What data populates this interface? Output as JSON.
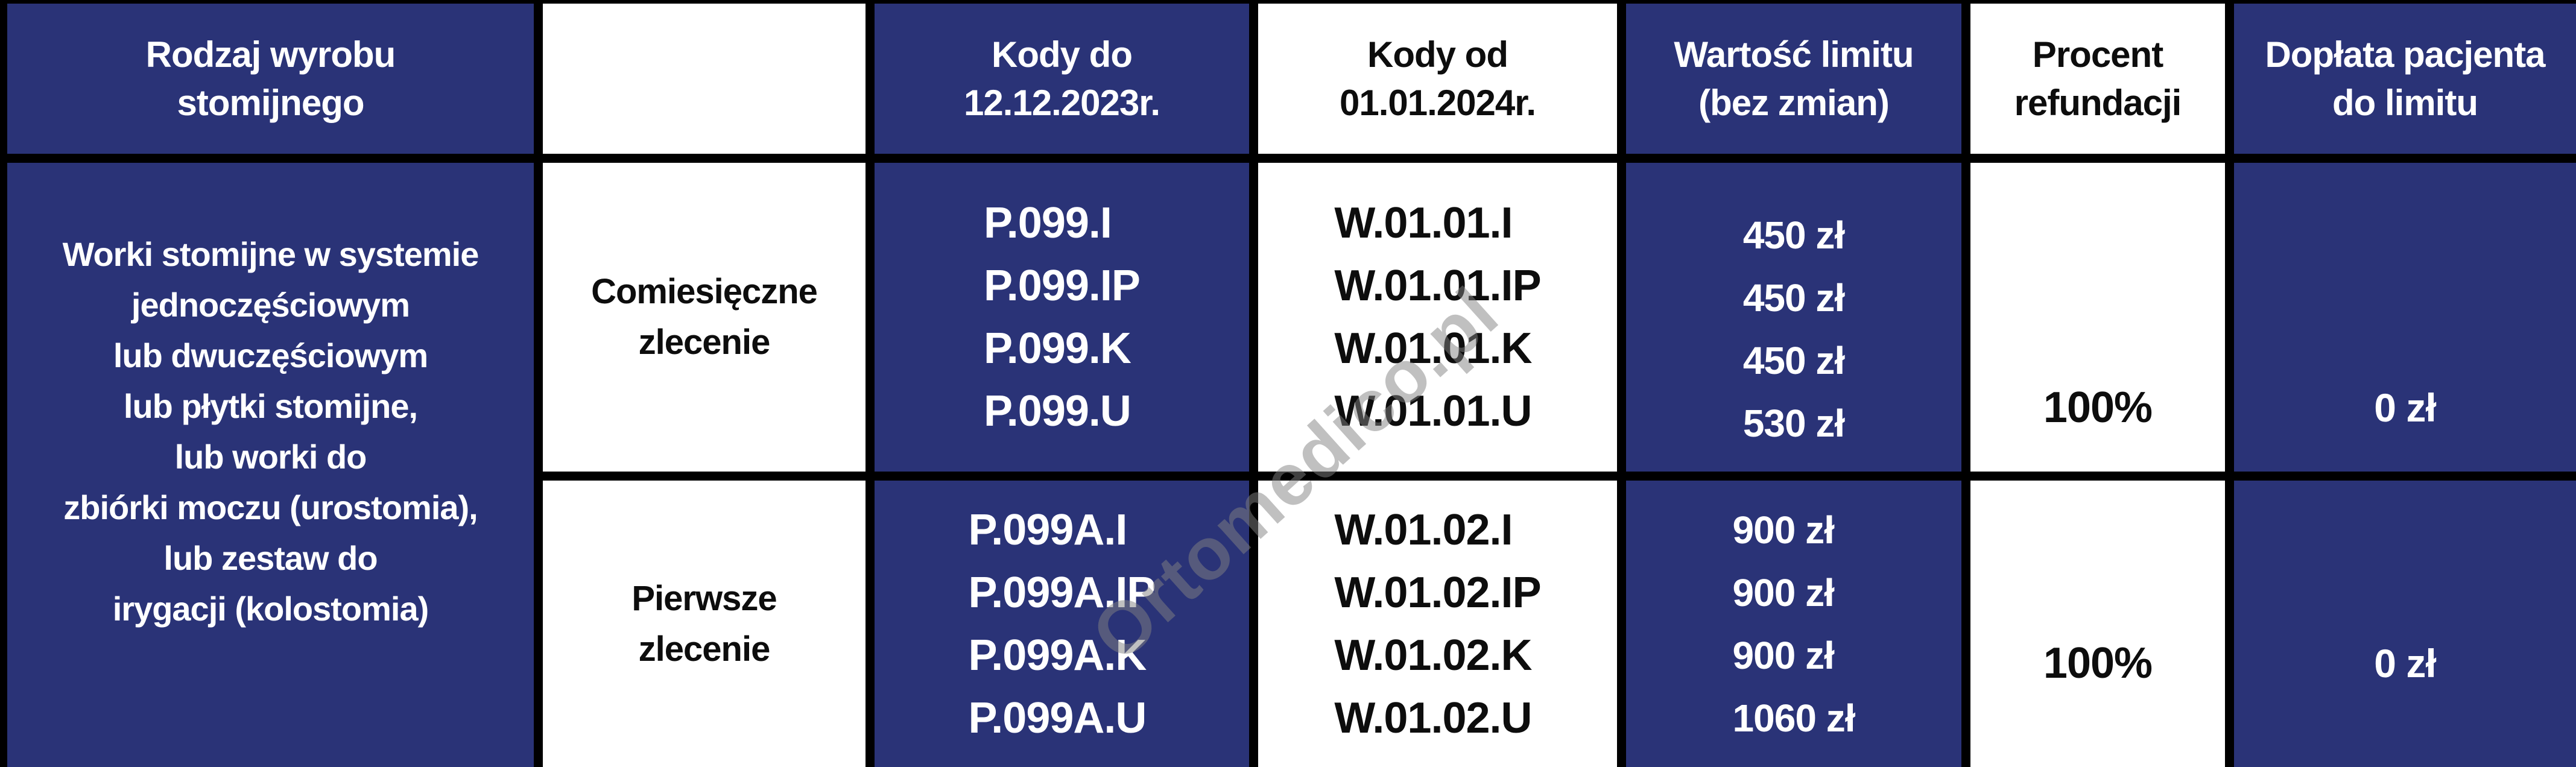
{
  "header": {
    "col1": "Rodzaj wyrobu\nstomijnego",
    "col2": "",
    "col3": "Kody do\n12.12.2023r.",
    "col4": "Kody od\n01.01.2024r.",
    "col5": "Wartość limitu\n(bez zmian)",
    "col6": "Procent\nrefundacji",
    "col7": "Dopłata pacjenta\ndo limitu"
  },
  "product": {
    "description": "Worki stomijne w systemie\njednoczęściowym\nlub dwuczęściowym\nlub płytki stomijne,\nlub worki do\nzbiórki moczu (urostomia),\nlub zestaw do\nirygacji (kolostomia)"
  },
  "rows": [
    {
      "order_type": "Comiesięczne\nzlecenie",
      "codes_old": "P.099.I\nP.099.IP\nP.099.K\nP.099.U",
      "codes_new": "W.01.01.I\nW.01.01.IP\nW.01.01.K\nW.01.01.U",
      "limit_values": "450 zł\n450 zł\n450 zł\n530 zł",
      "refund_percent": "100%",
      "patient_copay": "0 zł"
    },
    {
      "order_type": "Pierwsze\nzlecenie",
      "codes_old": "P.099A.I\nP.099A.IP\nP.099A.K\nP.099A.U",
      "codes_new": "W.01.02.I\nW.01.02.IP\nW.01.02.K\nW.01.02.U",
      "limit_values": "900 zł\n900 zł\n900 zł\n1060 zł",
      "refund_percent": "100%",
      "patient_copay": "0 zł"
    }
  ],
  "watermark": "Ortomedico.pl",
  "colors": {
    "navy": "#2a3377",
    "border": "#000000",
    "white": "#ffffff",
    "text_on_navy": "#ffffff",
    "text_on_white": "#0d0d0d",
    "watermark_gray": "#828282"
  },
  "chart_data": {
    "type": "table",
    "title": "Refundacja wyrobów stomijnych — kody i limity",
    "columns": [
      "Rodzaj wyrobu stomijnego",
      "",
      "Kody do 12.12.2023r.",
      "Kody od 01.01.2024r.",
      "Wartość limitu (bez zmian)",
      "Procent refundacji",
      "Dopłata pacjenta do limitu"
    ],
    "rows": [
      {
        "rodzaj_wyrobu": "Worki stomijne w systemie jednoczęściowym lub dwuczęściowym lub płytki stomijne, lub worki do zbiórki moczu (urostomia), lub zestaw do irygacji (kolostomia)",
        "zlecenie": "Comiesięczne zlecenie",
        "kody_do_12_12_2023": [
          "P.099.I",
          "P.099.IP",
          "P.099.K",
          "P.099.U"
        ],
        "kody_od_01_01_2024": [
          "W.01.01.I",
          "W.01.01.IP",
          "W.01.01.K",
          "W.01.01.U"
        ],
        "wartosc_limitu_zl": [
          450,
          450,
          450,
          530
        ],
        "procent_refundacji": "100%",
        "doplata_pacjenta": "0 zł"
      },
      {
        "rodzaj_wyrobu": "Worki stomijne w systemie jednoczęściowym lub dwuczęściowym lub płytki stomijne, lub worki do zbiórki moczu (urostomia), lub zestaw do irygacji (kolostomia)",
        "zlecenie": "Pierwsze zlecenie",
        "kody_do_12_12_2023": [
          "P.099A.I",
          "P.099A.IP",
          "P.099A.K",
          "P.099A.U"
        ],
        "kody_od_01_01_2024": [
          "W.01.02.I",
          "W.01.02.IP",
          "W.01.02.K",
          "W.01.02.U"
        ],
        "wartosc_limitu_zl": [
          900,
          900,
          900,
          1060
        ],
        "procent_refundacji": "100%",
        "doplata_pacjenta": "0 zł"
      }
    ],
    "layout": {
      "grid": "on",
      "header_fill": "alternating navy/white",
      "watermark": "Ortomedico.pl diagonal"
    }
  }
}
